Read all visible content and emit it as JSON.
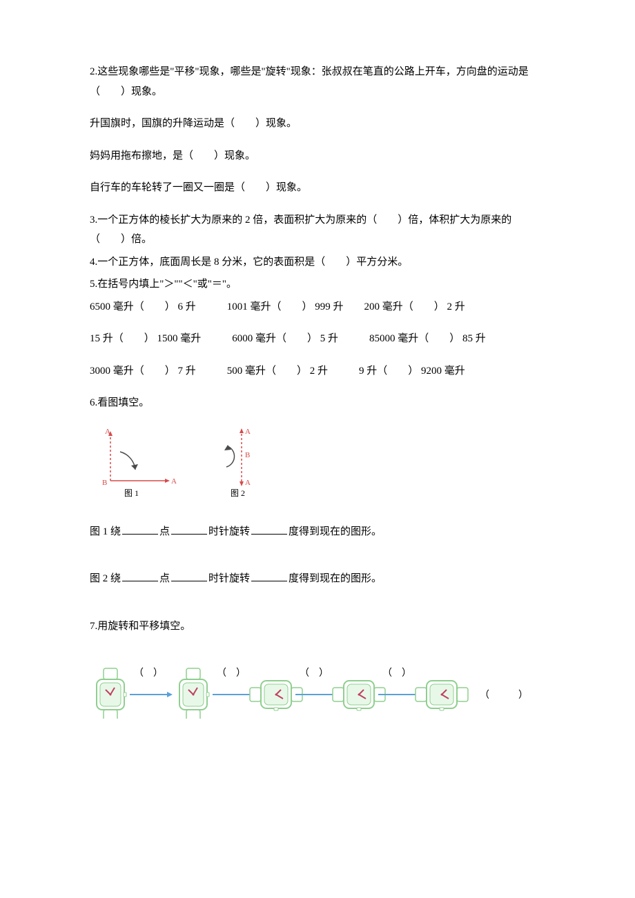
{
  "colors": {
    "text": "#000000",
    "diagram_red": "#d84a4a",
    "diagram_gray": "#4a4a4a",
    "watch_outline": "#8fcf8f",
    "watch_face": "#e8f8e8",
    "watch_hand": "#c04060",
    "arrow_blue": "#5aa0d8"
  },
  "q2": {
    "lead": "2.这些现象哪些是\"平移\"现象，哪些是\"旋转\"现象：张叔叔在笔直的公路上开车，方向盘的运动是（　　）现象。",
    "line2": "升国旗时，国旗的升降运动是（　　）现象。",
    "line3": "妈妈用拖布擦地，是（　　）现象。",
    "line4": "自行车的车轮转了一圈又一圈是（　　）现象。"
  },
  "q3": "3.一个正方体的棱长扩大为原来的 2 倍，表面积扩大为原来的（　　）倍，体积扩大为原来的（　　）倍。",
  "q4": "4.一个正方体，底面周长是 8 分米，它的表面积是（　　）平方分米。",
  "q5_lead": "5.在括号内填上\"＞\"\"＜\"或\"＝\"。",
  "q5_line1": "6500 毫升（　　） 6 升　　　1001 毫升（　　） 999 升　　200 毫升（　　） 2 升",
  "q5_line2": "15 升（　　） 1500 毫升　　　6000 毫升（　　） 5 升　　　85000 毫升（　　） 85 升",
  "q5_line3": "3000 毫升（　　） 7 升　　　500 毫升（　　） 2 升　　　9 升（　　） 9200 毫升",
  "q6_lead": "6.看图填空。",
  "diagram1": {
    "A_top": "A",
    "B": "B",
    "A_right": "A",
    "caption": "图 1"
  },
  "diagram2": {
    "A": "A",
    "B": "B",
    "A_bottom": "A",
    "caption": "图 2"
  },
  "q6_line1_parts": {
    "p1": "图 1 绕",
    "p2": "点",
    "p3": "时针旋转",
    "p4": "度得到现在的图形。"
  },
  "q6_line2_parts": {
    "p1": "图 2 绕",
    "p2": "点",
    "p3": "时针旋转",
    "p4": "度得到现在的图形。"
  },
  "q7_lead": "7.用旋转和平移填空。",
  "watches": {
    "items": [
      {
        "angle": 0
      },
      {
        "angle": 0
      },
      {
        "angle": 90
      },
      {
        "angle": 90
      },
      {
        "angle": 90
      }
    ],
    "between_label": "（　）",
    "final": "（　　　）"
  }
}
